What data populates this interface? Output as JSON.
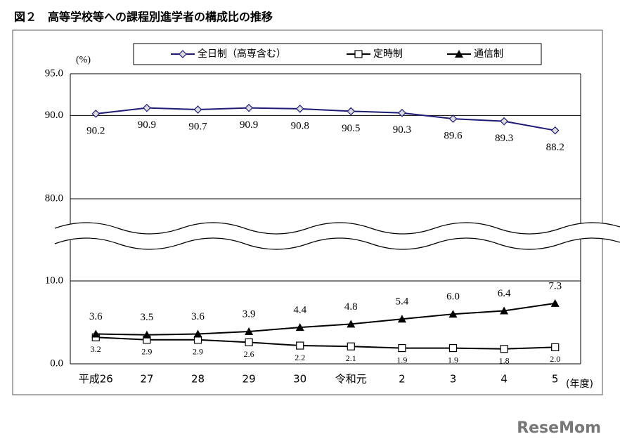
{
  "chart_data": {
    "type": "line",
    "title": "図２　高等学校等への課程別進学者の構成比の推移",
    "y_unit": "(%)",
    "x_unit": "(年度)",
    "categories": [
      "平成26",
      "27",
      "28",
      "29",
      "30",
      "令和元",
      "2",
      "3",
      "4",
      "5"
    ],
    "ylim": [
      0,
      95
    ],
    "ybreak": [
      10,
      80
    ],
    "yticks": [
      {
        "value": 0,
        "label": "0.0"
      },
      {
        "value": 10,
        "label": "10.0"
      },
      {
        "value": 80,
        "label": "80.0"
      },
      {
        "value": 90,
        "label": "90.0"
      },
      {
        "value": 95,
        "label": "95.0"
      }
    ],
    "grid": true,
    "series": [
      {
        "name": "全日制（高専含む）",
        "color": "#1c1c78",
        "marker": "diamond",
        "label_side": "below",
        "values": [
          90.2,
          90.9,
          90.7,
          90.9,
          90.8,
          90.5,
          90.3,
          89.6,
          89.3,
          88.2
        ]
      },
      {
        "name": "定時制",
        "color": "#000000",
        "marker": "square",
        "label_side": "below",
        "values": [
          3.2,
          2.9,
          2.9,
          2.6,
          2.2,
          2.1,
          1.9,
          1.9,
          1.8,
          2.0
        ],
        "value_labels": [
          "3.2",
          "2.9",
          "2.9",
          "2.6",
          "2.2",
          "2.1",
          "1.9",
          "1.9",
          "1.8",
          "2.0"
        ]
      },
      {
        "name": "通信制",
        "color": "#000000",
        "marker": "triangle",
        "label_side": "above",
        "values": [
          3.6,
          3.5,
          3.6,
          3.9,
          4.4,
          4.8,
          5.4,
          6.0,
          6.4,
          7.3
        ],
        "value_labels": [
          "3.6",
          "3.5",
          "3.6",
          "3.9",
          "4.4",
          "4.8",
          "5.4",
          "6.0",
          "6.4",
          "7.3"
        ]
      }
    ],
    "watermark": "ReseMom"
  }
}
